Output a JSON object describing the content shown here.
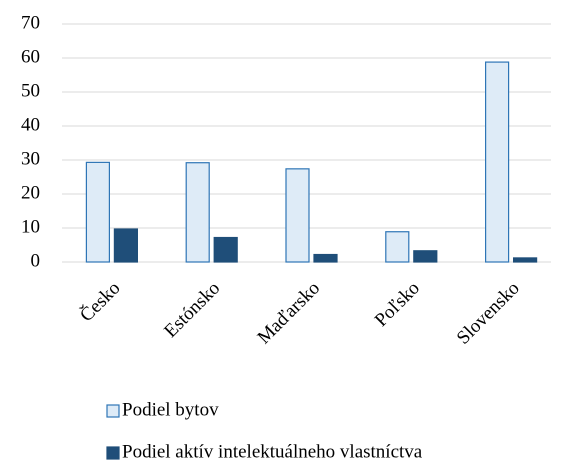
{
  "chart_data": {
    "type": "bar",
    "categories": [
      "Česko",
      "Estónsko",
      "Maďarsko",
      "Poľsko",
      "Slovensko"
    ],
    "series": [
      {
        "name": "Podiel bytov",
        "color": "#deebf7",
        "edgecolor": "#2e75b6",
        "values": [
          29.3,
          29.2,
          27.4,
          8.9,
          58.8
        ]
      },
      {
        "name": "Podiel aktív intelektuálneho vlastníctva",
        "color": "#1f4e79",
        "edgecolor": "#1f4e79",
        "values": [
          9.7,
          7.2,
          2.2,
          3.3,
          1.2
        ]
      }
    ],
    "ylim": [
      0,
      70
    ],
    "yticks": [
      0,
      10,
      20,
      30,
      40,
      50,
      60,
      70
    ],
    "grid": true
  }
}
